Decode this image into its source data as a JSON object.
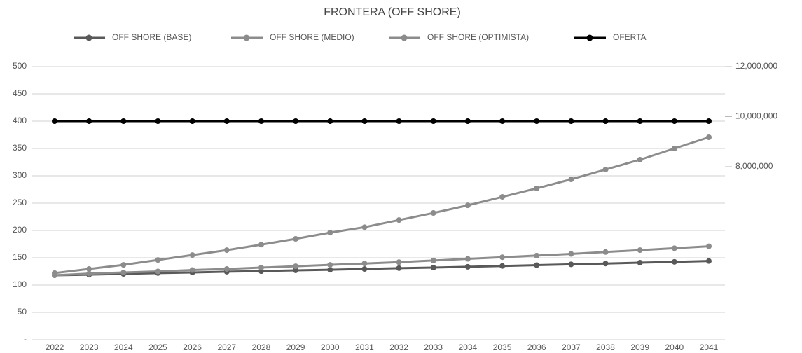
{
  "chart_data": {
    "type": "line",
    "title": "FRONTERA (OFF SHORE)",
    "categories": [
      "2022",
      "2023",
      "2024",
      "2025",
      "2026",
      "2027",
      "2028",
      "2029",
      "2030",
      "2031",
      "2032",
      "2033",
      "2034",
      "2035",
      "2036",
      "2037",
      "2038",
      "2039",
      "2040",
      "2041"
    ],
    "series": [
      {
        "name": "OFF SHORE (BASE)",
        "color": "#595959",
        "values": [
          118,
          119,
          120.5,
          122,
          123,
          124.5,
          125.5,
          127,
          128,
          129.5,
          131,
          132,
          133.5,
          135,
          136.5,
          138,
          139.5,
          141,
          142.5,
          144
        ]
      },
      {
        "name": "OFF SHORE (MEDIO)",
        "color": "#8c8c8c",
        "values": [
          118,
          121,
          123,
          125,
          127.5,
          129.5,
          132,
          134.5,
          137,
          139.5,
          142,
          145,
          148,
          151,
          154,
          157,
          160.5,
          164,
          167.5,
          171
        ]
      },
      {
        "name": "OFF SHORE (OPTIMISTA)",
        "color": "#8c8c8c",
        "values": [
          122,
          129.5,
          137,
          146,
          155,
          164,
          174,
          184.6,
          196,
          206,
          219,
          232,
          246,
          261.5,
          277,
          293.6,
          311.5,
          329.5,
          350,
          370.5
        ]
      },
      {
        "name": "OFERTA",
        "color": "#000000",
        "values": [
          400,
          400,
          400,
          400,
          400,
          400,
          400,
          400,
          400,
          400,
          400,
          400,
          400,
          400,
          400,
          400,
          400,
          400,
          400,
          400
        ]
      }
    ],
    "ylim": [
      0,
      500
    ],
    "yticks": [
      {
        "value": 0,
        "label": "-"
      },
      50,
      100,
      150,
      200,
      250,
      300,
      350,
      400,
      450,
      500
    ],
    "y2lim": [
      1090000,
      12000000
    ],
    "y2ticks": [
      {
        "value": 8000000,
        "label": "8,000,000"
      },
      {
        "value": 10000000,
        "label": "10,000,000"
      },
      {
        "value": 12000000,
        "label": "12,000,000"
      }
    ],
    "grid": true
  }
}
